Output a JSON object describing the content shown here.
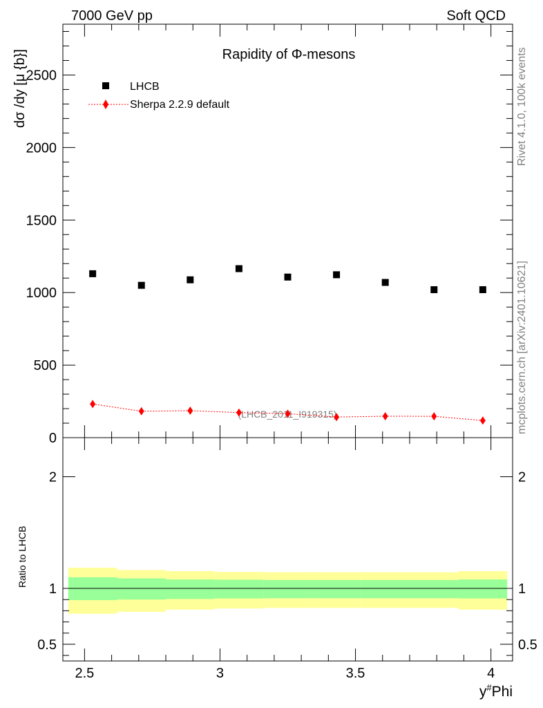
{
  "header": {
    "left": "7000 GeV pp",
    "right": "Soft QCD"
  },
  "side_labels": {
    "rivet": "Rivet 4.1.0,  100k events",
    "mcplots": "mcplots.cern.ch [arXiv:2401.10621]"
  },
  "chart_data": [
    {
      "type": "scatter",
      "title": "Rapidity of Φ-mesons",
      "xlabel": "y#Phi",
      "ylabel": "dσ /dy [μ {b}]",
      "xlim": [
        2.42,
        4.08
      ],
      "ylim": [
        0,
        2850
      ],
      "yticks": [
        0,
        500,
        1000,
        1500,
        2000,
        2500
      ],
      "watermark": "(LHCB_2011_I919315)",
      "legend_position": "top-left",
      "x": [
        2.53,
        2.71,
        2.89,
        3.07,
        3.25,
        3.43,
        3.61,
        3.79,
        3.97
      ],
      "series": [
        {
          "name": "LHCB",
          "marker": "square",
          "color": "#000000",
          "values": [
            1130,
            1050,
            1088,
            1165,
            1107,
            1123,
            1070,
            1020,
            1020
          ]
        },
        {
          "name": "Sherpa 2.2.9 default",
          "marker": "diamond",
          "line": "dotted",
          "color": "#ff0000",
          "values": [
            232,
            182,
            186,
            173,
            165,
            142,
            148,
            147,
            118
          ]
        }
      ]
    },
    {
      "type": "area",
      "ylabel": "Ratio to LHCB",
      "xlabel": "y#Phi",
      "xlim": [
        2.42,
        4.08
      ],
      "ylim": [
        0.35,
        2.35
      ],
      "xticks": [
        2.5,
        3,
        3.5,
        4
      ],
      "xtick_labels": [
        "2.5",
        "3",
        "3.5",
        "4"
      ],
      "yticks": [
        0.5,
        1,
        2
      ],
      "ytick_labels": [
        "0.5",
        "1",
        "2"
      ],
      "bin_edges": [
        2.44,
        2.62,
        2.8,
        2.98,
        3.16,
        3.34,
        3.52,
        3.7,
        3.88,
        4.06
      ],
      "bands": [
        {
          "name": "stat",
          "color": "#99ff99",
          "low": [
            0.895,
            0.9,
            0.905,
            0.91,
            0.912,
            0.912,
            0.912,
            0.912,
            0.91
          ],
          "high": [
            1.1,
            1.09,
            1.08,
            1.078,
            1.075,
            1.075,
            1.075,
            1.075,
            1.08
          ]
        },
        {
          "name": "total",
          "color": "#ffff99",
          "low": [
            0.773,
            0.79,
            0.81,
            0.82,
            0.825,
            0.825,
            0.825,
            0.825,
            0.81
          ],
          "high": [
            1.185,
            1.165,
            1.155,
            1.148,
            1.145,
            1.145,
            1.145,
            1.145,
            1.155
          ]
        }
      ],
      "reference_line": 1
    }
  ]
}
